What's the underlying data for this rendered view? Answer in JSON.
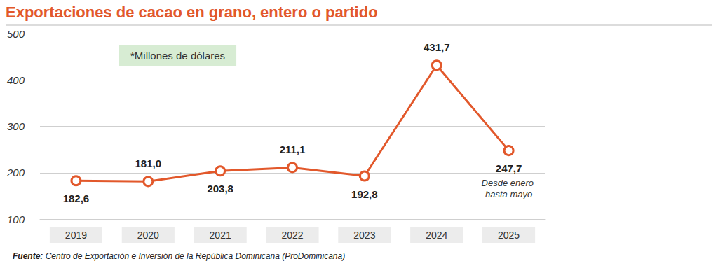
{
  "chart_data": {
    "type": "line",
    "title": "Exportaciones de cacao en grano, entero o partido",
    "subtitle": "*Millones de dólares",
    "categories": [
      "2019",
      "2020",
      "2021",
      "2022",
      "2023",
      "2024",
      "2025"
    ],
    "values": [
      182.6,
      181.0,
      203.8,
      211.1,
      192.8,
      431.7,
      247.7
    ],
    "value_labels": [
      "182,6",
      "181,0",
      "203,8",
      "211,1",
      "192,8",
      "431,7",
      "247,7"
    ],
    "color": "#e2582b",
    "marker": "circle",
    "ylim": [
      100,
      500
    ],
    "yticks": [
      100,
      200,
      300,
      400,
      500
    ],
    "grid": true,
    "data_labels": true,
    "annotations": [
      {
        "category": "2025",
        "text": "Desde enero hasta mayo"
      }
    ],
    "source_label": "Fuente:",
    "source": "Centro de Exportación e Inversión de la República Dominicana (ProDominicana)"
  }
}
